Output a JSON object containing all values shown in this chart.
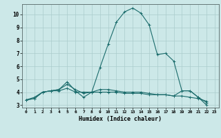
{
  "xlabel": "Humidex (Indice chaleur)",
  "background_color": "#cce8e8",
  "grid_color": "#aacccc",
  "line_color": "#1a6b6b",
  "xlim": [
    -0.5,
    23.5
  ],
  "ylim": [
    2.8,
    10.8
  ],
  "xticks": [
    0,
    1,
    2,
    3,
    4,
    5,
    6,
    7,
    8,
    9,
    10,
    11,
    12,
    13,
    14,
    15,
    16,
    17,
    18,
    19,
    20,
    21,
    22,
    23
  ],
  "yticks": [
    3,
    4,
    5,
    6,
    7,
    8,
    9,
    10
  ],
  "series": [
    {
      "x": [
        0,
        1,
        2,
        3,
        4,
        5,
        6,
        7,
        8,
        9,
        10,
        11,
        12,
        13,
        14,
        15,
        16,
        17,
        18,
        19,
        20,
        21,
        22
      ],
      "y": [
        3.4,
        3.6,
        4.0,
        4.1,
        4.2,
        4.8,
        4.1,
        3.6,
        4.0,
        5.9,
        7.7,
        9.4,
        10.2,
        10.5,
        10.1,
        9.2,
        6.9,
        7.0,
        6.4,
        4.1,
        4.1,
        3.6,
        3.0
      ]
    },
    {
      "x": [
        0,
        1,
        2,
        3,
        4,
        5,
        6,
        7,
        8,
        9,
        10,
        11,
        12,
        13,
        14,
        15,
        16,
        17,
        18,
        19,
        20,
        21,
        22
      ],
      "y": [
        3.4,
        3.5,
        4.0,
        4.1,
        4.1,
        4.3,
        4.0,
        4.0,
        4.0,
        4.0,
        4.0,
        4.0,
        3.9,
        3.9,
        3.9,
        3.8,
        3.8,
        3.8,
        3.7,
        3.7,
        3.6,
        3.5,
        3.3
      ]
    },
    {
      "x": [
        0,
        1,
        2,
        3,
        4,
        5,
        6,
        7,
        8,
        9,
        10,
        11,
        12,
        13,
        14,
        15,
        16,
        17,
        18,
        19,
        20,
        21,
        22
      ],
      "y": [
        3.4,
        3.5,
        4.0,
        4.1,
        4.2,
        4.6,
        4.2,
        3.9,
        4.0,
        4.2,
        4.2,
        4.1,
        4.0,
        4.0,
        4.0,
        3.9,
        3.8,
        3.8,
        3.7,
        4.1,
        4.1,
        3.6,
        3.2
      ]
    }
  ]
}
